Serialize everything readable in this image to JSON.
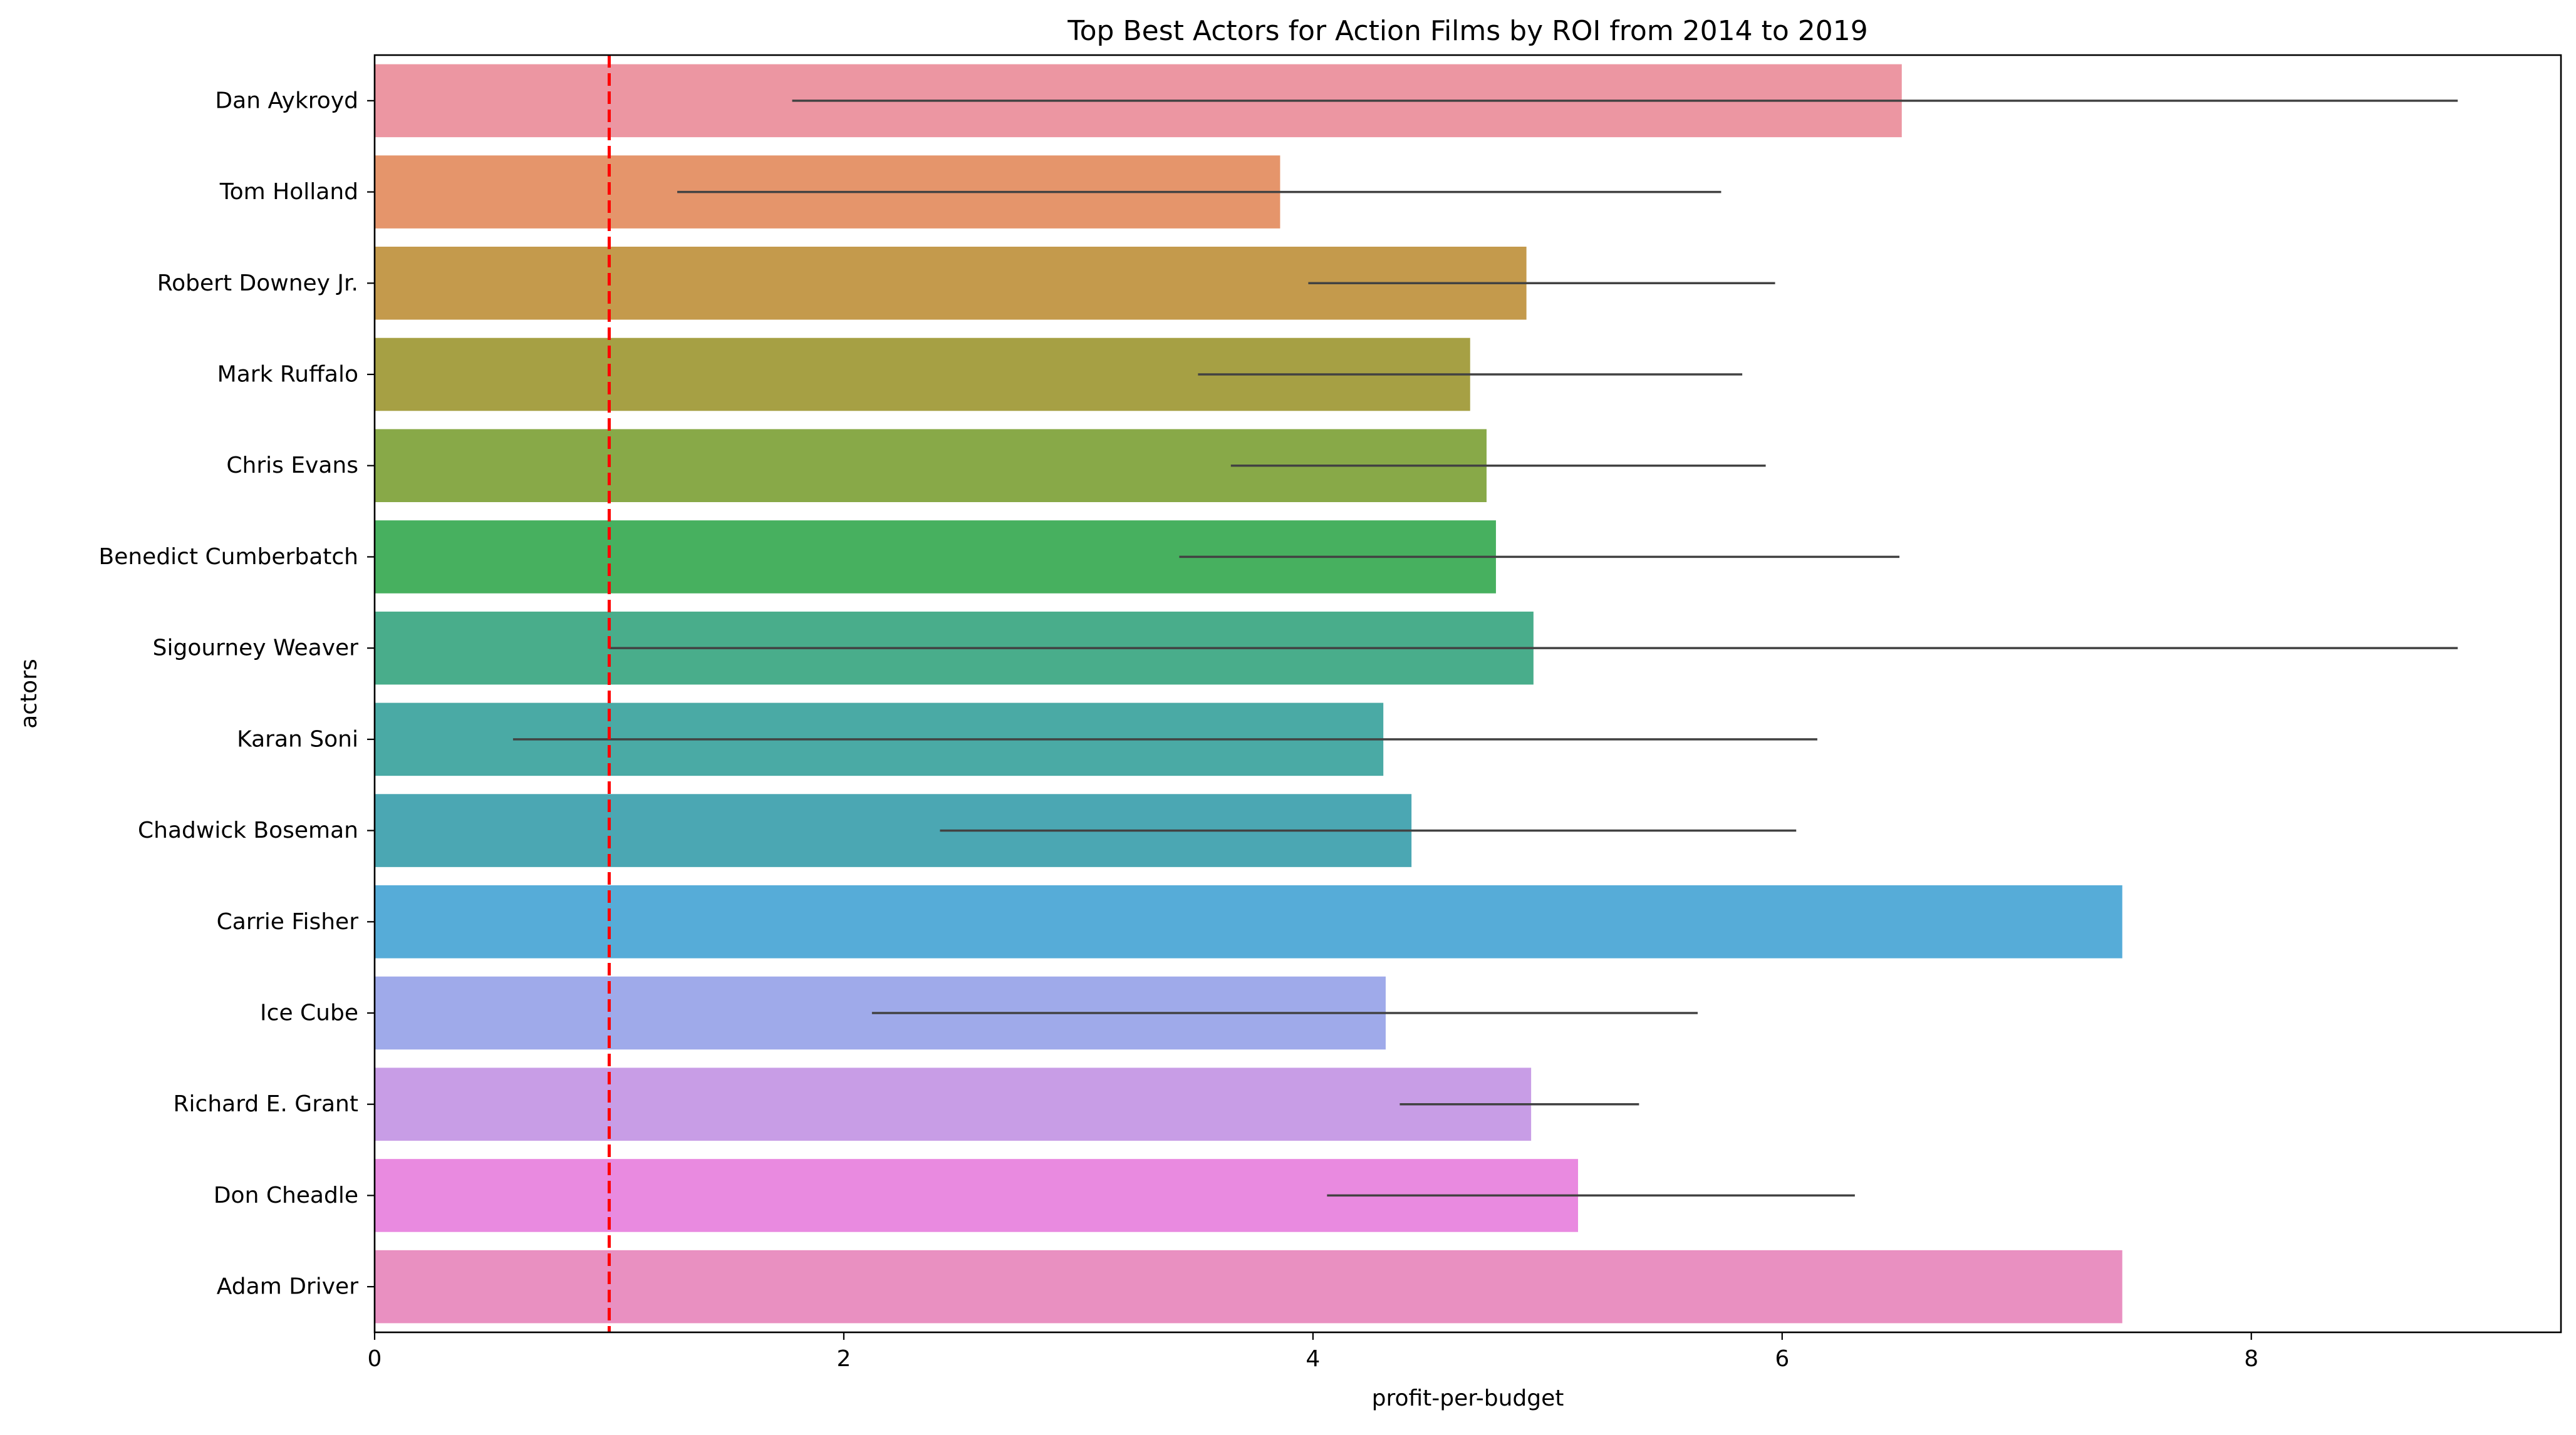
{
  "chart_data": {
    "type": "bar",
    "orientation": "horizontal",
    "title": "Top Best Actors for Action Films by ROI from 2014 to 2019",
    "xlabel": "profit-per-budget",
    "ylabel": "actors",
    "xlim": [
      0,
      9.32
    ],
    "xticks": [
      "0",
      "2",
      "4",
      "6",
      "8"
    ],
    "grid": false,
    "legend": "none",
    "reference_line": {
      "x": 1.0,
      "color": "#ff0000",
      "style": "dashed"
    },
    "categories": [
      "Dan Aykroyd",
      "Tom Holland",
      "Robert Downey Jr.",
      "Mark Ruffalo",
      "Chris Evans",
      "Benedict Cumberbatch",
      "Sigourney Weaver",
      "Karan Soni",
      "Chadwick Boseman",
      "Carrie Fisher",
      "Ice Cube",
      "Richard E. Grant",
      "Don Cheadle",
      "Adam Driver"
    ],
    "values": [
      6.51,
      3.86,
      4.91,
      4.67,
      4.74,
      4.78,
      4.94,
      4.3,
      4.42,
      7.45,
      4.31,
      4.93,
      5.13,
      7.45
    ],
    "error_low": [
      1.78,
      1.29,
      3.98,
      3.51,
      3.65,
      3.43,
      1.0,
      0.59,
      2.41,
      null,
      2.12,
      4.37,
      4.06,
      null
    ],
    "error_high": [
      8.88,
      5.74,
      5.97,
      5.83,
      5.93,
      6.5,
      8.88,
      6.15,
      6.06,
      null,
      5.64,
      5.39,
      6.31,
      null
    ],
    "colors": [
      "#ec96a2",
      "#e5956b",
      "#c49a4c",
      "#a6a044",
      "#88a948",
      "#47b05f",
      "#49ad8b",
      "#4aaaa5",
      "#4ba7b3",
      "#56acd8",
      "#9faaea",
      "#c89de6",
      "#e98ae0",
      "#e990c1"
    ],
    "error_color": "#424242"
  }
}
